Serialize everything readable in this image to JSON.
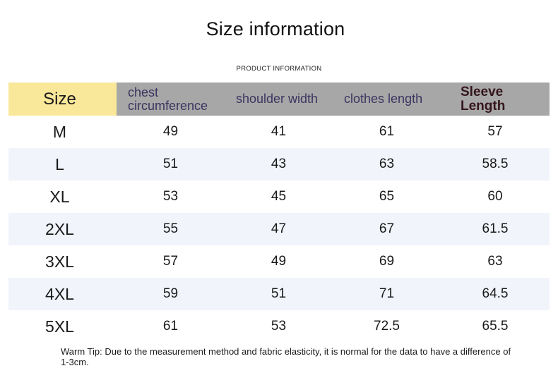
{
  "title": "Size information",
  "subtitle": "PRODUCT INFORMATION",
  "table": {
    "headers": {
      "size": "Size",
      "chest": "chest circumference",
      "shoulder": "shoulder width",
      "length": "clothes length",
      "sleeve": "Sleeve Length"
    },
    "rows": [
      {
        "size": "M",
        "chest": "49",
        "shoulder": "41",
        "length": "61",
        "sleeve": "57"
      },
      {
        "size": "L",
        "chest": "51",
        "shoulder": "43",
        "length": "63",
        "sleeve": "58.5"
      },
      {
        "size": "XL",
        "chest": "53",
        "shoulder": "45",
        "length": "65",
        "sleeve": "60"
      },
      {
        "size": "2XL",
        "chest": "55",
        "shoulder": "47",
        "length": "67",
        "sleeve": "61.5"
      },
      {
        "size": "3XL",
        "chest": "57",
        "shoulder": "49",
        "length": "69",
        "sleeve": "63"
      },
      {
        "size": "4XL",
        "chest": "59",
        "shoulder": "51",
        "length": "71",
        "sleeve": "64.5"
      },
      {
        "size": "5XL",
        "chest": "61",
        "shoulder": "53",
        "length": "72.5",
        "sleeve": "65.5"
      }
    ]
  },
  "warm_tip": "Warm Tip: Due to the measurement method and fabric elasticity, it is normal for the data to have a difference of 1-3cm.",
  "colors": {
    "size_header_bg": "#fae89a",
    "header_bg": "#a7a7a7",
    "header_text": "#3b3560",
    "sleeve_header_text": "#35161c",
    "stripe_bg": "#f1f4fb"
  }
}
